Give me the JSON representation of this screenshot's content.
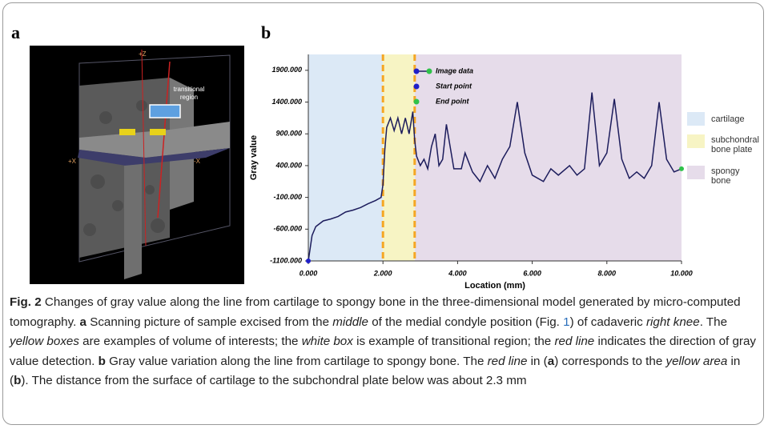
{
  "panel_labels": [
    "a",
    "b"
  ],
  "image": {
    "labels": [
      "+Z",
      "transitional region",
      "+X",
      "-X"
    ]
  },
  "chart_data": {
    "type": "line",
    "x_label": "Location (mm)",
    "y_label": "Gray value",
    "xlim": [
      0,
      10
    ],
    "xticks": [
      {
        "value": 0,
        "label": "0.000"
      },
      {
        "value": 2,
        "label": "2.000"
      },
      {
        "value": 4,
        "label": "4.000"
      },
      {
        "value": 6,
        "label": "6.000"
      },
      {
        "value": 8,
        "label": "8.000"
      },
      {
        "value": 10,
        "label": "10.000"
      }
    ],
    "ylim": [
      -1100,
      2150
    ],
    "yticks": [
      {
        "value": 1900,
        "label": "1900.000"
      },
      {
        "value": 1400,
        "label": "1400.000"
      },
      {
        "value": 900,
        "label": "900.000"
      },
      {
        "value": 400,
        "label": "400.000"
      },
      {
        "value": -100,
        "label": "-100.000"
      },
      {
        "value": -600,
        "label": "-600.000"
      },
      {
        "value": -1100,
        "label": "-1100.000"
      }
    ],
    "regions": [
      {
        "name": "cartilage",
        "color": "#dce9f6",
        "xlim": [
          0,
          2
        ]
      },
      {
        "name": "subchondral bone plate",
        "color": "#f7f4c4",
        "xlim": [
          2,
          2.85
        ]
      },
      {
        "name": "spongy bone",
        "color": "#e6dcea",
        "xlim": [
          2.85,
          10
        ]
      }
    ],
    "boundaries": {
      "color": "#f5a623",
      "x": [
        2,
        2.85
      ]
    },
    "series": [
      {
        "name": "Image data",
        "color": "#1c1c5c",
        "x": [
          0,
          0.1,
          0.2,
          0.4,
          0.6,
          0.8,
          1.0,
          1.2,
          1.4,
          1.6,
          1.8,
          1.95,
          2.0,
          2.05,
          2.1,
          2.2,
          2.3,
          2.4,
          2.5,
          2.6,
          2.7,
          2.8,
          2.85,
          2.9,
          3.0,
          3.1,
          3.2,
          3.3,
          3.4,
          3.5,
          3.6,
          3.7,
          3.8,
          3.9,
          4.1,
          4.2,
          4.4,
          4.6,
          4.8,
          5.0,
          5.2,
          5.4,
          5.6,
          5.8,
          6.0,
          6.3,
          6.5,
          6.7,
          7.0,
          7.2,
          7.4,
          7.6,
          7.8,
          8.0,
          8.2,
          8.4,
          8.6,
          8.8,
          9.0,
          9.2,
          9.4,
          9.6,
          9.8,
          10.0
        ],
        "values": [
          -1100,
          -700,
          -560,
          -470,
          -440,
          -400,
          -330,
          -300,
          -260,
          -200,
          -150,
          -100,
          100,
          650,
          1000,
          1150,
          950,
          1150,
          900,
          1150,
          900,
          1250,
          800,
          550,
          400,
          500,
          350,
          700,
          900,
          400,
          500,
          1050,
          700,
          350,
          350,
          600,
          300,
          150,
          400,
          200,
          500,
          700,
          1400,
          600,
          250,
          150,
          350,
          250,
          400,
          250,
          350,
          1550,
          400,
          600,
          1450,
          500,
          200,
          300,
          200,
          400,
          1400,
          500,
          300,
          350
        ]
      }
    ],
    "markers": [
      {
        "name": "Start point",
        "color": "#1f1fc8",
        "x": 0,
        "value": -1100
      },
      {
        "name": "End point",
        "color": "#2fc24a",
        "x": 10,
        "value": 350
      }
    ]
  },
  "caption": {
    "segments": [
      "Fig. 2",
      "  Changes of gray value along the line from cartilage to spongy bone in the three-dimensional model generated by micro-computed tomography. ",
      "a",
      " Scanning picture of sample excised from the ",
      "middle",
      " of the medial condyle position (Fig. ",
      "1",
      ") of cadaveric ",
      "right knee",
      ". The ",
      "yellow boxes",
      " are examples of volume of interests; the ",
      "white box",
      " is example of transitional region; the ",
      "red line",
      " indicates the direction of gray value detection. ",
      "b",
      " Gray value variation along the line from cartilage to spongy bone. The ",
      "red line",
      " in (",
      "a",
      ") corresponds to the ",
      "yellow area",
      " in (",
      "b",
      "). The distance from the surface of cartilage to the subchondral plate below was about 2.3 mm"
    ]
  }
}
